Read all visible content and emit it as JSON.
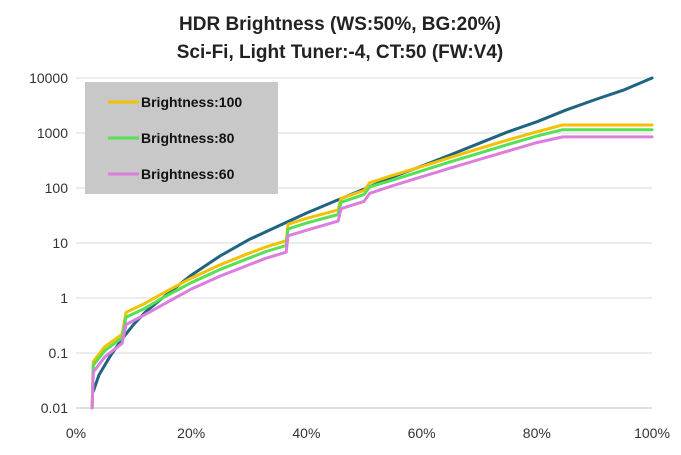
{
  "chart_data": {
    "type": "line",
    "title": "HDR Brightness (WS:50%, BG:20%)",
    "subtitle": "Sci-Fi, Light Tuner:-4, CT:50 (FW:V4)",
    "xlabel": "",
    "ylabel": "",
    "x_scale": "linear",
    "y_scale": "log",
    "xlim": [
      0,
      100
    ],
    "ylim": [
      0.01,
      10000
    ],
    "x_ticks": [
      "0%",
      "20%",
      "40%",
      "60%",
      "80%",
      "100%"
    ],
    "y_ticks": [
      "0.01",
      "0.1",
      "1",
      "10",
      "100",
      "1000",
      "10000"
    ],
    "grid": "horizontal",
    "legend_position": "top-left",
    "legend_background": "#c8c8c8",
    "series": [
      {
        "name": "",
        "color": "#1f6480",
        "x": [
          3,
          4,
          6,
          8,
          10,
          12,
          15,
          20,
          25,
          30,
          35,
          40,
          45,
          50,
          55,
          60,
          65,
          70,
          75,
          80,
          85,
          90,
          95,
          100
        ],
        "y": [
          0.02,
          0.04,
          0.09,
          0.18,
          0.33,
          0.55,
          1.0,
          2.6,
          5.8,
          11.5,
          20,
          35,
          58,
          95,
          160,
          250,
          400,
          650,
          1050,
          1600,
          2600,
          4000,
          6000,
          10000
        ]
      },
      {
        "name": "Brightness:100",
        "color": "#f2c200",
        "x": [
          2.8,
          3,
          5,
          8,
          8.7,
          12,
          15,
          20,
          25,
          30,
          33,
          36.5,
          36.8,
          40,
          45.5,
          46,
          50,
          51,
          55,
          60,
          65,
          70,
          75,
          80,
          84.5,
          90,
          95,
          100
        ],
        "y": [
          0.01,
          0.07,
          0.13,
          0.22,
          0.55,
          0.8,
          1.2,
          2.3,
          4.0,
          6.5,
          8.5,
          11,
          22,
          28,
          40,
          65,
          90,
          125,
          170,
          245,
          360,
          520,
          750,
          1050,
          1400,
          1400,
          1400,
          1400
        ]
      },
      {
        "name": "Brightness:80",
        "color": "#55e055",
        "x": [
          2.8,
          3,
          5,
          8,
          8.7,
          12,
          15,
          20,
          25,
          30,
          33,
          36.5,
          36.8,
          40,
          45.5,
          46,
          50,
          51,
          55,
          60,
          65,
          70,
          75,
          80,
          84.5,
          90,
          95,
          100
        ],
        "y": [
          0.01,
          0.06,
          0.11,
          0.19,
          0.45,
          0.65,
          1.0,
          1.9,
          3.3,
          5.3,
          7.0,
          9.0,
          18,
          23,
          33,
          55,
          76,
          105,
          140,
          205,
          300,
          430,
          620,
          880,
          1150,
          1150,
          1150,
          1150
        ]
      },
      {
        "name": "Brightness:60",
        "color": "#dd7ddd",
        "x": [
          2.8,
          3,
          5,
          8,
          8.7,
          12,
          15,
          20,
          25,
          30,
          33,
          36.5,
          36.8,
          40,
          45.5,
          46,
          50,
          51,
          55,
          60,
          65,
          70,
          75,
          80,
          84.5,
          90,
          95,
          100
        ],
        "y": [
          0.01,
          0.045,
          0.085,
          0.15,
          0.33,
          0.5,
          0.75,
          1.45,
          2.5,
          4.0,
          5.3,
          6.8,
          13.5,
          17,
          25,
          42,
          57,
          80,
          110,
          160,
          230,
          330,
          470,
          670,
          850,
          850,
          850,
          850
        ]
      }
    ]
  }
}
